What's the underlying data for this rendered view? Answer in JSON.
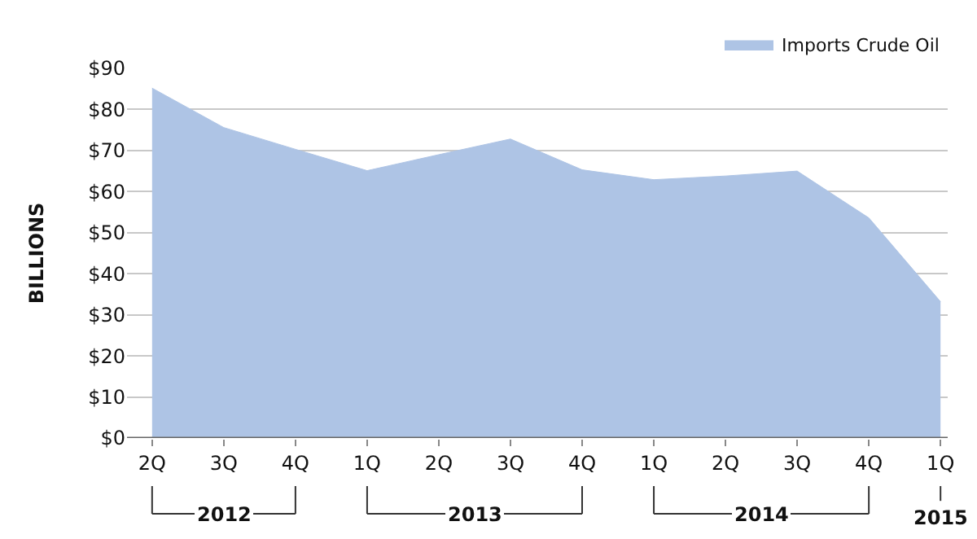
{
  "chart_data": {
    "type": "area",
    "ylabel": "BILLIONS",
    "categories": [
      "2Q",
      "3Q",
      "4Q",
      "1Q",
      "2Q",
      "3Q",
      "4Q",
      "1Q",
      "2Q",
      "3Q",
      "4Q",
      "1Q"
    ],
    "series": [
      {
        "name": "Imports Crude Oil",
        "color": "#aec4e5",
        "values": [
          85.2,
          75.6,
          70.3,
          65.1,
          69,
          72.8,
          65.3,
          62.9,
          63.8,
          65,
          53.6,
          33.2
        ]
      }
    ],
    "ylim": [
      0,
      90
    ],
    "yticks": [
      {
        "value": 0,
        "label": "$0"
      },
      {
        "value": 10,
        "label": "$10"
      },
      {
        "value": 20,
        "label": "$20"
      },
      {
        "value": 30,
        "label": "$30"
      },
      {
        "value": 40,
        "label": "$40"
      },
      {
        "value": 50,
        "label": "$50"
      },
      {
        "value": 60,
        "label": "$60"
      },
      {
        "value": 70,
        "label": "$70"
      },
      {
        "value": 80,
        "label": "$80"
      },
      {
        "value": 90,
        "label": "$90"
      }
    ],
    "grid": "y",
    "legend": "top right",
    "annotations": [
      "2012",
      "2013",
      "2014",
      "2015"
    ]
  }
}
